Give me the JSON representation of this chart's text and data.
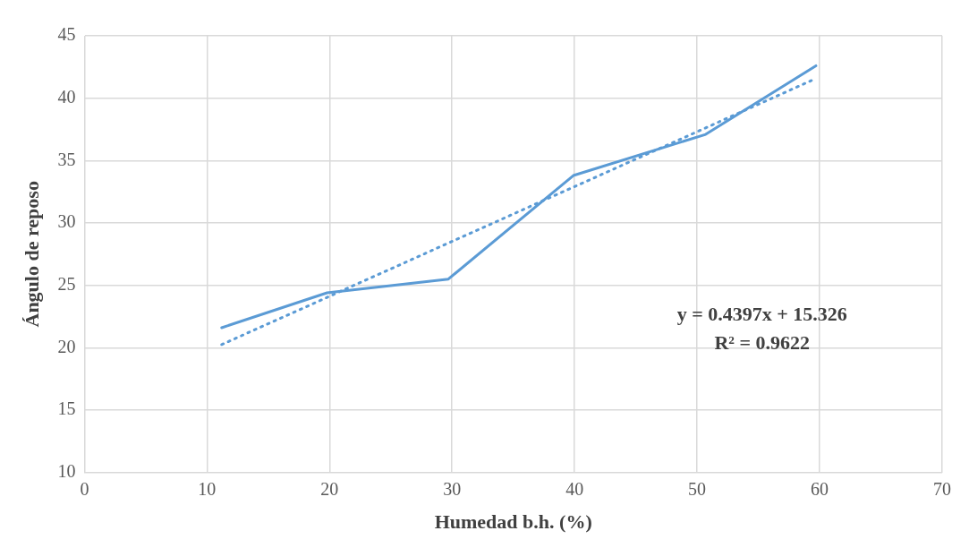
{
  "chart_data": {
    "type": "line",
    "xlabel": "Humedad b.h. (%)",
    "ylabel": "Ángulo de reposo",
    "xlim": [
      0,
      70
    ],
    "xticks": [
      0,
      10,
      20,
      30,
      40,
      50,
      60,
      70
    ],
    "ylim": [
      10,
      45
    ],
    "yticks": [
      10,
      15,
      20,
      25,
      30,
      35,
      40,
      45
    ],
    "grid": true,
    "legend": false,
    "marker": "none",
    "series": [
      {
        "color": "#5b9bd5",
        "line_style": "solid",
        "x": [
          11.2,
          19.8,
          29.7,
          39.9,
          50.7,
          59.7
        ],
        "values": [
          21.6,
          24.4,
          25.5,
          33.8,
          37.1,
          42.6
        ]
      },
      {
        "color": "#5b9bd5",
        "line_style": "dotted",
        "x": [
          11.2,
          59.7
        ],
        "values": [
          20.25,
          41.58
        ]
      }
    ],
    "annotations": [
      "y = 0.4397x + 15.326",
      "R² = 0.9622"
    ]
  }
}
